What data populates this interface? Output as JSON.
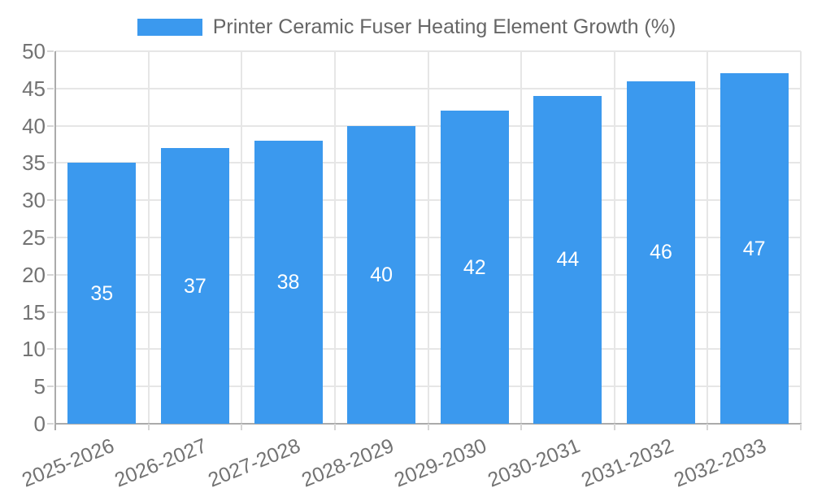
{
  "chart_data": {
    "type": "bar",
    "title": "Printer Ceramic Fuser Heating Element Growth (%)",
    "categories": [
      "2025-2026",
      "2026-2027",
      "2027-2028",
      "2028-2029",
      "2029-2030",
      "2030-2031",
      "2031-2032",
      "2032-2033"
    ],
    "values": [
      35,
      37,
      38,
      40,
      42,
      44,
      46,
      47
    ],
    "xlabel": "",
    "ylabel": "",
    "ylim": [
      0,
      50
    ],
    "yticks": [
      0,
      5,
      10,
      15,
      20,
      25,
      30,
      35,
      40,
      45,
      50
    ],
    "grid": true,
    "legend_position": "top",
    "colors": {
      "bar": "#3b99ee",
      "value_label": "#ffffff",
      "grid": "#e6e6e6",
      "axis": "#ababab",
      "tick_mark": "#d6d6d6",
      "tick_label": "#737373",
      "legend_text": "#666666"
    }
  }
}
